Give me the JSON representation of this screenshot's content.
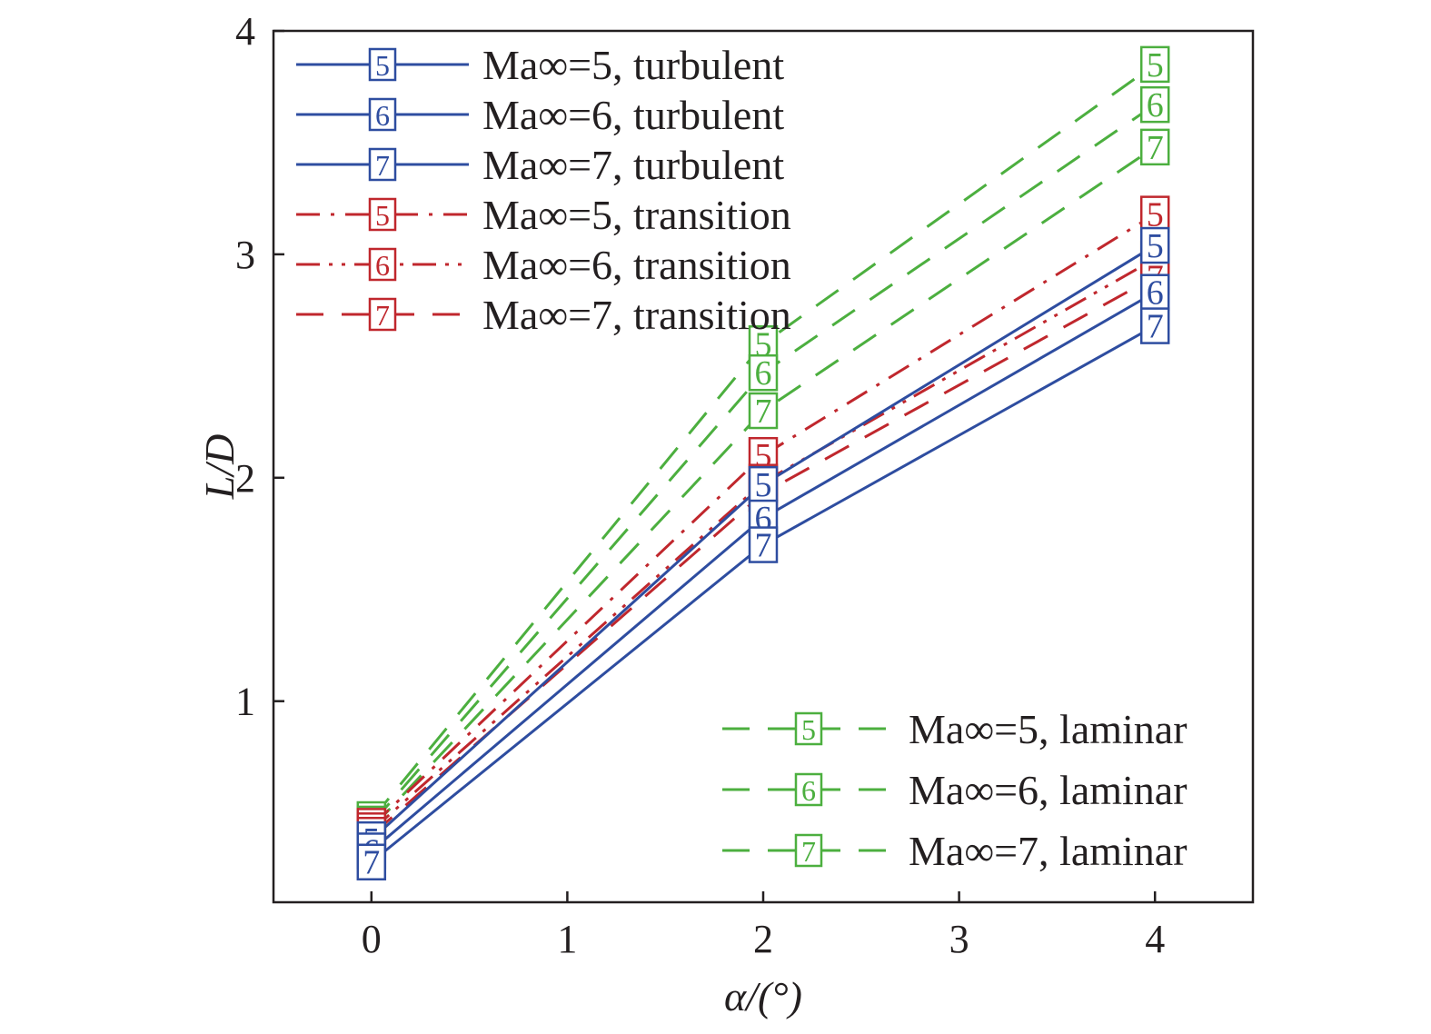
{
  "chart_data": {
    "type": "line",
    "xlabel": "α/(°)",
    "ylabel": "L/D",
    "xlim": [
      -0.5,
      4.5
    ],
    "ylim": [
      0.1,
      4
    ],
    "x_ticks": [
      "0",
      "1",
      "2",
      "3",
      "4"
    ],
    "y_ticks": [
      "1",
      "2",
      "3",
      "4"
    ],
    "grid": false,
    "legend_placement": [
      "top-left",
      "bottom-right"
    ],
    "x": [
      0,
      2,
      4
    ],
    "series": [
      {
        "name": "Ma∞=5, turbulent",
        "marker": "5",
        "values": [
          0.38,
          1.97,
          3.04
        ],
        "color": "#2e4da0",
        "dash": "solid"
      },
      {
        "name": "Ma∞=6, turbulent",
        "marker": "6",
        "values": [
          0.33,
          1.82,
          2.83
        ],
        "color": "#2e4da0",
        "dash": "solid"
      },
      {
        "name": "Ma∞=7, turbulent",
        "marker": "7",
        "values": [
          0.28,
          1.7,
          2.68
        ],
        "color": "#2e4da0",
        "dash": "solid"
      },
      {
        "name": "Ma∞=5, transition",
        "marker": "5",
        "values": [
          0.44,
          2.1,
          3.18
        ],
        "color": "#c0272d",
        "dash": "dashdot"
      },
      {
        "name": "Ma∞=6, transition",
        "marker": "6",
        "values": [
          0.42,
          1.98,
          2.98
        ],
        "color": "#c0272d",
        "dashdotdot": true,
        "dash": "dashdotdot"
      },
      {
        "name": "Ma∞=7, transition",
        "marker": "7",
        "values": [
          0.4,
          1.93,
          2.9
        ],
        "color": "#c0272d",
        "dash": "dash"
      },
      {
        "name": "Ma∞=5, laminar",
        "marker": "5",
        "values": [
          0.47,
          2.6,
          3.85
        ],
        "color": "#4caf3f",
        "dash": "dash"
      },
      {
        "name": "Ma∞=6, laminar",
        "marker": "6",
        "values": [
          0.45,
          2.47,
          3.67
        ],
        "color": "#4caf3f",
        "dash": "dash"
      },
      {
        "name": "Ma∞=7, laminar",
        "marker": "7",
        "values": [
          0.43,
          2.3,
          3.48
        ],
        "color": "#4caf3f",
        "dash": "dash"
      }
    ]
  }
}
